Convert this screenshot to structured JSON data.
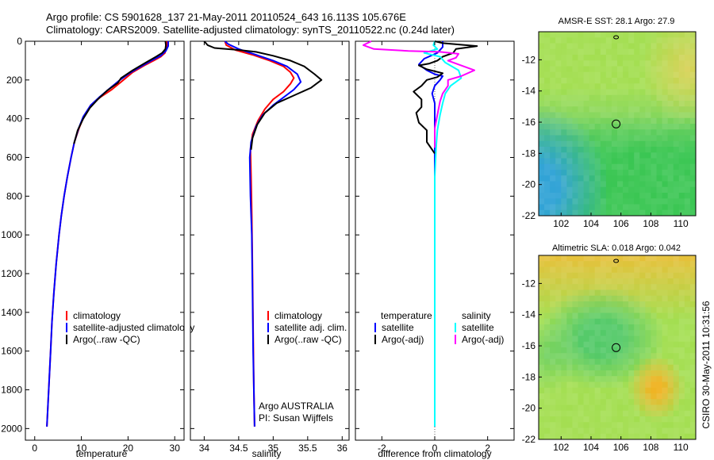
{
  "header": {
    "line1": "Argo profile: CS 5901628_137 21-May-2011 20110524_643 16.113S 105.676E",
    "line2": "Climatology: CARS2009. Satellite-adjusted climatology: synTS_20110522.nc (0.24d later)"
  },
  "side_note": "CSIRO 30-May-2011 10:31:56",
  "colors": {
    "climatology": "#ff0000",
    "satellite": "#0000ff",
    "argo": "#000000",
    "satellite_salinity_diff": "#00ffff",
    "argo_salinity_diff": "#ff00ff"
  },
  "chart_data": [
    {
      "id": "temperature",
      "type": "line",
      "xlabel": "temperature",
      "ylabel": "",
      "xlim": [
        -2,
        32
      ],
      "ylim": [
        2060,
        0
      ],
      "xticks": [
        0,
        10,
        20,
        30
      ],
      "yticks": [
        0,
        200,
        400,
        600,
        800,
        1000,
        1200,
        1400,
        1600,
        1800,
        2000
      ],
      "legend": {
        "placement": "lower-middle",
        "entries": [
          {
            "label": "climatology",
            "color": "#ff0000"
          },
          {
            "label": "satellite-adjusted climatology",
            "color": "#0000ff"
          },
          {
            "label": "Argo(..raw -QC)",
            "color": "#000000"
          }
        ]
      },
      "series": [
        {
          "color": "#ff0000",
          "points": [
            [
              28.3,
              0
            ],
            [
              28.3,
              30
            ],
            [
              27.9,
              60
            ],
            [
              27.0,
              80
            ],
            [
              25.5,
              100
            ],
            [
              23.5,
              125
            ],
            [
              21,
              160
            ],
            [
              18.5,
              210
            ],
            [
              16.5,
              250
            ],
            [
              14,
              290
            ],
            [
              12,
              330
            ],
            [
              10.5,
              390
            ],
            [
              9.5,
              450
            ],
            [
              8.5,
              520
            ],
            [
              7.8,
              600
            ],
            [
              7,
              700
            ],
            [
              6.3,
              800
            ],
            [
              5.7,
              900
            ],
            [
              5.2,
              1000
            ],
            [
              4.6,
              1150
            ],
            [
              4.1,
              1300
            ],
            [
              3.7,
              1450
            ],
            [
              3.4,
              1600
            ],
            [
              3.0,
              1800
            ],
            [
              2.6,
              1990
            ]
          ]
        },
        {
          "color": "#0000ff",
          "points": [
            [
              28.6,
              0
            ],
            [
              28.6,
              25
            ],
            [
              28.1,
              50
            ],
            [
              27,
              75
            ],
            [
              25,
              100
            ],
            [
              22.8,
              130
            ],
            [
              20.3,
              165
            ],
            [
              18,
              205
            ],
            [
              16,
              245
            ],
            [
              13.8,
              290
            ],
            [
              12,
              330
            ],
            [
              10.4,
              390
            ],
            [
              9.4,
              450
            ],
            [
              8.5,
              520
            ],
            [
              7.8,
              600
            ],
            [
              7,
              700
            ],
            [
              6.3,
              800
            ],
            [
              5.7,
              900
            ],
            [
              5.2,
              1000
            ],
            [
              4.6,
              1150
            ],
            [
              4.1,
              1300
            ],
            [
              3.7,
              1450
            ],
            [
              3.4,
              1600
            ],
            [
              3.0,
              1800
            ],
            [
              2.6,
              1990
            ]
          ]
        },
        {
          "color": "#000000",
          "points": [
            [
              28.0,
              0
            ],
            [
              28.1,
              20
            ],
            [
              28.0,
              40
            ],
            [
              27.3,
              60
            ],
            [
              26,
              80
            ],
            [
              23.8,
              110
            ],
            [
              21,
              150
            ],
            [
              18.5,
              190
            ],
            [
              17.8,
              215
            ],
            [
              15.5,
              255
            ],
            [
              13.5,
              300
            ],
            [
              11.8,
              345
            ],
            [
              10.4,
              400
            ],
            [
              9.2,
              460
            ],
            [
              8.4,
              530
            ]
          ]
        }
      ]
    },
    {
      "id": "salinity",
      "type": "line",
      "xlabel": "salinity",
      "ylabel": "",
      "xlim": [
        33.8,
        36.1
      ],
      "ylim": [
        2060,
        0
      ],
      "xticks": [
        34,
        34.5,
        35,
        35.5,
        36
      ],
      "legend": {
        "placement": "lower-right",
        "entries": [
          {
            "label": "climatology",
            "color": "#ff0000"
          },
          {
            "label": "satellite adj. clim.",
            "color": "#0000ff"
          },
          {
            "label": "Argo(..raw -QC)",
            "color": "#000000"
          }
        ]
      },
      "annotation": {
        "line1": "Argo AUSTRALIA",
        "line2": "PI: Susan Wijffels"
      },
      "series": [
        {
          "color": "#ff0000",
          "points": [
            [
              34.3,
              0
            ],
            [
              34.32,
              20
            ],
            [
              34.45,
              45
            ],
            [
              34.7,
              70
            ],
            [
              34.95,
              100
            ],
            [
              35.15,
              130
            ],
            [
              35.25,
              160
            ],
            [
              35.3,
              190
            ],
            [
              35.25,
              220
            ],
            [
              35.15,
              260
            ],
            [
              35.0,
              300
            ],
            [
              34.88,
              350
            ],
            [
              34.78,
              410
            ],
            [
              34.7,
              480
            ],
            [
              34.67,
              560
            ],
            [
              34.68,
              700
            ],
            [
              34.69,
              900
            ],
            [
              34.7,
              1200
            ],
            [
              34.71,
              1500
            ],
            [
              34.72,
              1800
            ],
            [
              34.73,
              1990
            ]
          ]
        },
        {
          "color": "#0000ff",
          "points": [
            [
              34.3,
              0
            ],
            [
              34.35,
              15
            ],
            [
              34.5,
              40
            ],
            [
              34.75,
              70
            ],
            [
              35.0,
              100
            ],
            [
              35.2,
              130
            ],
            [
              35.35,
              170
            ],
            [
              35.4,
              210
            ],
            [
              35.3,
              250
            ],
            [
              35.15,
              290
            ],
            [
              35.0,
              330
            ],
            [
              34.85,
              380
            ],
            [
              34.75,
              440
            ],
            [
              34.68,
              520
            ],
            [
              34.66,
              600
            ],
            [
              34.67,
              800
            ],
            [
              34.69,
              1000
            ],
            [
              34.7,
              1300
            ],
            [
              34.71,
              1600
            ],
            [
              34.72,
              1800
            ],
            [
              34.73,
              1990
            ]
          ]
        },
        {
          "color": "#000000",
          "points": [
            [
              34.0,
              0
            ],
            [
              34.05,
              20
            ],
            [
              34.15,
              35
            ],
            [
              34.25,
              38
            ],
            [
              34.5,
              45
            ],
            [
              34.75,
              55
            ],
            [
              35.0,
              75
            ],
            [
              35.25,
              100
            ],
            [
              35.45,
              130
            ],
            [
              35.6,
              170
            ],
            [
              35.7,
              200
            ],
            [
              35.55,
              240
            ],
            [
              35.3,
              280
            ],
            [
              35.05,
              320
            ],
            [
              34.88,
              370
            ],
            [
              34.77,
              430
            ],
            [
              34.7,
              500
            ],
            [
              34.68,
              560
            ]
          ]
        }
      ]
    },
    {
      "id": "difference",
      "type": "line",
      "xlabel": "difference from climatology",
      "ylabel": "",
      "xlim": [
        -3,
        3
      ],
      "ylim": [
        2060,
        0
      ],
      "xticks": [
        -2,
        0,
        2
      ],
      "legend": {
        "placement": "lower-middle",
        "entries": [
          {
            "label": "temperature",
            "color": null
          },
          {
            "label": "satellite",
            "color": "#0000ff"
          },
          {
            "label": "Argo(-adj)",
            "color": "#000000"
          },
          {
            "label": "salinity",
            "color": null
          },
          {
            "label": "satellite",
            "color": "#00ffff"
          },
          {
            "label": "Argo(-adj)",
            "color": "#ff00ff"
          }
        ]
      },
      "series": [
        {
          "color": "#0000ff",
          "points": [
            [
              0.3,
              0
            ],
            [
              0.3,
              30
            ],
            [
              0.1,
              60
            ],
            [
              -0.4,
              90
            ],
            [
              -0.6,
              120
            ],
            [
              -0.3,
              150
            ],
            [
              0,
              170
            ],
            [
              0.3,
              180
            ],
            [
              0.2,
              200
            ],
            [
              0,
              230
            ],
            [
              -0.1,
              270
            ],
            [
              0,
              320
            ],
            [
              0,
              400
            ],
            [
              0,
              500
            ],
            [
              0,
              700
            ],
            [
              0,
              1000
            ],
            [
              0,
              1400
            ],
            [
              0,
              1800
            ],
            [
              0,
              1990
            ]
          ]
        },
        {
          "color": "#000000",
          "points": [
            [
              0,
              0
            ],
            [
              0.3,
              10
            ],
            [
              1.6,
              25
            ],
            [
              0.8,
              40
            ],
            [
              0.7,
              60
            ],
            [
              0.3,
              80
            ],
            [
              0.1,
              100
            ],
            [
              -0.2,
              115
            ],
            [
              -0.6,
              125
            ],
            [
              -0.3,
              145
            ],
            [
              0.3,
              165
            ],
            [
              0.1,
              185
            ],
            [
              -0.3,
              200
            ],
            [
              -0.5,
              230
            ],
            [
              -0.8,
              260
            ],
            [
              -0.5,
              300
            ],
            [
              -0.5,
              340
            ],
            [
              -0.7,
              370
            ],
            [
              -0.6,
              420
            ],
            [
              -0.3,
              460
            ],
            [
              -0.3,
              520
            ],
            [
              -0.1,
              560
            ],
            [
              0,
              580
            ]
          ]
        },
        {
          "color": "#00ffff",
          "points": [
            [
              0,
              0
            ],
            [
              -0.05,
              20
            ],
            [
              0.1,
              40
            ],
            [
              -0.4,
              60
            ],
            [
              0.2,
              80
            ],
            [
              0.4,
              110
            ],
            [
              0.9,
              150
            ],
            [
              1.0,
              190
            ],
            [
              0.6,
              230
            ],
            [
              0.4,
              270
            ],
            [
              0.3,
              320
            ],
            [
              0.2,
              380
            ],
            [
              0.1,
              460
            ],
            [
              0.05,
              550
            ],
            [
              0,
              700
            ],
            [
              0,
              1000
            ],
            [
              0,
              1400
            ],
            [
              0,
              1800
            ],
            [
              0,
              1990
            ]
          ]
        },
        {
          "color": "#ff00ff",
          "points": [
            [
              -2.4,
              0
            ],
            [
              -2.7,
              20
            ],
            [
              -2.3,
              40
            ],
            [
              -1,
              50
            ],
            [
              0.2,
              55
            ],
            [
              0.9,
              65
            ],
            [
              0.8,
              85
            ],
            [
              0.5,
              100
            ],
            [
              0.9,
              120
            ],
            [
              1.5,
              150
            ],
            [
              1.0,
              180
            ],
            [
              0.5,
              200
            ],
            [
              0.5,
              230
            ],
            [
              0.3,
              270
            ],
            [
              0.2,
              310
            ],
            [
              0.1,
              380
            ],
            [
              0,
              450
            ],
            [
              0,
              550
            ]
          ]
        }
      ]
    },
    {
      "id": "sst_map",
      "type": "heatmap",
      "title": "AMSR-E SST: 28.1 Argo: 27.9",
      "xlim": [
        100.5,
        111
      ],
      "ylim": [
        -22,
        -10.2
      ],
      "xticks": [
        102,
        104,
        106,
        108,
        110
      ],
      "yticks": [
        -12,
        -14,
        -16,
        -18,
        -20,
        -22
      ],
      "marker": {
        "lon": 105.676,
        "lat": -16.113
      },
      "color_regions": [
        {
          "name": "north",
          "color": "#a8e05a"
        },
        {
          "name": "centre-west",
          "color": "#7ed46a"
        },
        {
          "name": "south",
          "color": "#3fc85a"
        },
        {
          "name": "southwest",
          "color": "#3ca8d8"
        },
        {
          "name": "northeast",
          "color": "#e8d060"
        }
      ]
    },
    {
      "id": "sla_map",
      "type": "heatmap",
      "title": "Altimetric SLA: 0.018 Argo: 0.042",
      "xlim": [
        100.5,
        111
      ],
      "ylim": [
        -22,
        -10.2
      ],
      "xticks": [
        102,
        104,
        106,
        108,
        110
      ],
      "yticks": [
        -12,
        -14,
        -16,
        -18,
        -20,
        -22
      ],
      "marker": {
        "lon": 105.676,
        "lat": -16.113
      },
      "color_regions": [
        {
          "name": "north",
          "color": "#f0c040"
        },
        {
          "name": "centre",
          "color": "#5ccc70"
        },
        {
          "name": "south",
          "color": "#a8e05a"
        },
        {
          "name": "southeast",
          "color": "#f0b830"
        }
      ]
    }
  ]
}
